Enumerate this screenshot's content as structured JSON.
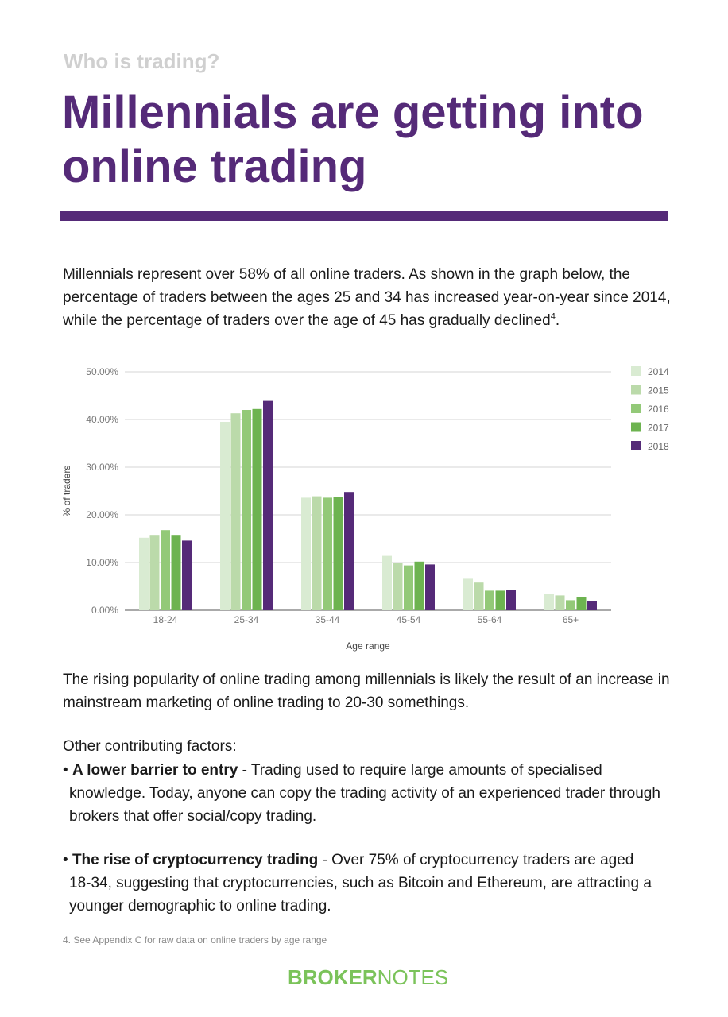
{
  "header": {
    "kicker": "Who is trading?",
    "title_line1": "Millennials are getting into",
    "title_line2": "online trading",
    "accent_color": "#552a78"
  },
  "intro": {
    "text": "Millennials represent over 58% of all online traders. As shown in the graph below, the percentage of traders between the ages 25 and 34 has increased year-on-year since 2014, while the percentage of traders over the age of 45 has gradually declined",
    "footnote_ref": "4",
    "end": "."
  },
  "chart_data": {
    "type": "bar",
    "categories": [
      "18-24",
      "25-34",
      "35-44",
      "45-54",
      "55-64",
      "65+"
    ],
    "series": [
      {
        "name": "2014",
        "color": "#d9ebd2",
        "values": [
          15.2,
          39.5,
          23.6,
          11.4,
          6.6,
          3.4
        ]
      },
      {
        "name": "2015",
        "color": "#bbdaaa",
        "values": [
          15.8,
          41.3,
          23.9,
          9.9,
          5.8,
          3.1
        ]
      },
      {
        "name": "2016",
        "color": "#93c978",
        "values": [
          16.8,
          42.0,
          23.6,
          9.4,
          4.1,
          2.1
        ]
      },
      {
        "name": "2017",
        "color": "#6db350",
        "values": [
          15.8,
          42.2,
          23.8,
          10.2,
          4.1,
          2.7
        ]
      },
      {
        "name": "2018",
        "color": "#552a78",
        "values": [
          14.6,
          43.9,
          24.8,
          9.6,
          4.3,
          1.9
        ]
      }
    ],
    "yticks": [
      "0.00%",
      "10.00%",
      "20.00%",
      "30.00%",
      "40.00%",
      "50.00%"
    ],
    "ylim": [
      0,
      50
    ],
    "xlabel": "Age range",
    "ylabel": "% of traders",
    "grid": true,
    "legend": "right"
  },
  "body": {
    "para2": "The rising popularity of online trading among millennials is likely the result of an increase in mainstream marketing of online trading to 20-30 somethings.",
    "factors_label": "Other contributing factors:",
    "bullets": [
      {
        "marker": "•",
        "title": "A lower barrier to entry",
        "text": " - Trading used to require large amounts of specialised",
        "cont": "knowledge. Today, anyone can copy the trading activity of an experienced trader through brokers that offer social/copy trading."
      },
      {
        "marker": "•",
        "title": "The rise of cryptocurrency trading",
        "text": " - Over 75% of cryptocurrency traders are aged",
        "cont": "18-34, suggesting that cryptocurrencies, such as Bitcoin and Ethereum, are attracting a younger demographic to online trading."
      }
    ]
  },
  "footnote": "4. See Appendix C for raw data on online traders by age range",
  "brand": {
    "bold": "BROKER",
    "light": "NOTES",
    "color": "#7bc35a"
  }
}
